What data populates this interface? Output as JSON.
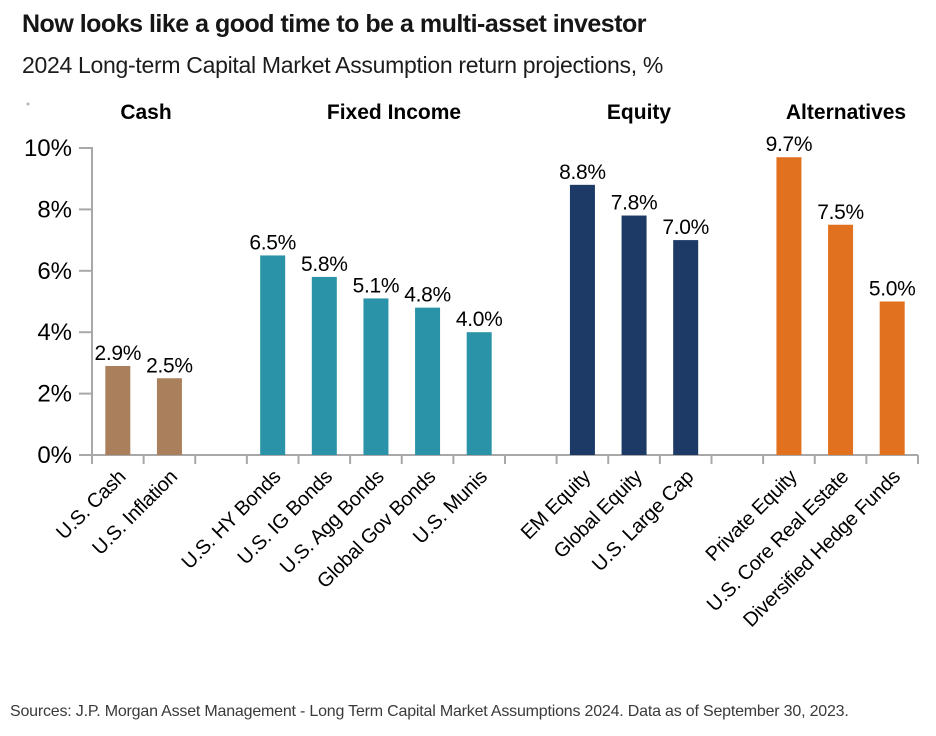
{
  "header": {
    "title": "Now looks like a good time to be a multi-asset investor",
    "subtitle": "2024 Long-term Capital Market Assumption return projections, %"
  },
  "chart_data": {
    "type": "bar",
    "title": "2024 Long-term Capital Market Assumption return projections, %",
    "xlabel": "",
    "ylabel": "",
    "ylim": [
      0,
      10
    ],
    "ytick_values": [
      10,
      8,
      6,
      4,
      2,
      0
    ],
    "ytick_labels": [
      "10%",
      "8%",
      "6%",
      "4%",
      "2%",
      "0%"
    ],
    "grid": false,
    "legend_position": "group headers above bars",
    "axis_color": "#a8a8a8",
    "value_label_color": "#000000",
    "groups": [
      {
        "label": "Cash",
        "header_color": "#8c6747",
        "bar_color": "#a9805b",
        "bars": [
          {
            "category": "U.S. Cash",
            "value": 2.9,
            "value_label": "2.9%"
          },
          {
            "category": "U.S. Inflation",
            "value": 2.5,
            "value_label": "2.5%"
          }
        ]
      },
      {
        "label": "Fixed Income",
        "header_color": "#2f9cb3",
        "bar_color": "#2b93a8",
        "bars": [
          {
            "category": "U.S. HY Bonds",
            "value": 6.5,
            "value_label": "6.5%"
          },
          {
            "category": "U.S. IG Bonds",
            "value": 5.8,
            "value_label": "5.8%"
          },
          {
            "category": "U.S. Agg Bonds",
            "value": 5.1,
            "value_label": "5.1%"
          },
          {
            "category": "Global Gov Bonds",
            "value": 4.8,
            "value_label": "4.8%"
          },
          {
            "category": "U.S. Munis",
            "value": 4.0,
            "value_label": "4.0%"
          }
        ]
      },
      {
        "label": "Equity",
        "header_color": "#1c4176",
        "bar_color": "#1d3a66",
        "bars": [
          {
            "category": "EM Equity",
            "value": 8.8,
            "value_label": "8.8%"
          },
          {
            "category": "Global Equity",
            "value": 7.8,
            "value_label": "7.8%"
          },
          {
            "category": "U.S. Large Cap",
            "value": 7.0,
            "value_label": "7.0%"
          }
        ]
      },
      {
        "label": "Alternatives",
        "header_color": "#ec7e23",
        "bar_color": "#e2711f",
        "bars": [
          {
            "category": "Private Equity",
            "value": 9.7,
            "value_label": "9.7%"
          },
          {
            "category": "U.S. Core Real Estate",
            "value": 7.5,
            "value_label": "7.5%"
          },
          {
            "category": "Diversified Hedge Funds",
            "value": 5.0,
            "value_label": "5.0%"
          }
        ]
      }
    ]
  },
  "footer": {
    "source": "Sources: J.P. Morgan Asset Management - Long Term Capital Market Assumptions 2024. Data as of September 30, 2023."
  }
}
